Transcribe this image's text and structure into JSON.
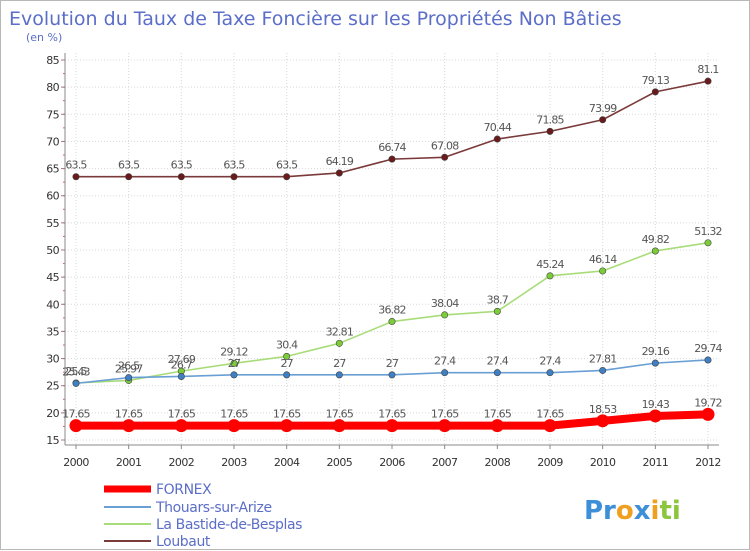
{
  "chart_data": {
    "type": "line",
    "title": "Evolution du Taux de Taxe Foncière sur les Propriétés Non Bâties",
    "subtitle": "(en %)",
    "xlabel": "",
    "ylabel": "",
    "ylim": [
      15,
      85
    ],
    "yticks": [
      15,
      20,
      25,
      30,
      35,
      40,
      45,
      50,
      55,
      60,
      65,
      70,
      75,
      80,
      85
    ],
    "ytick_labels": [
      "15",
      "20",
      "25",
      "30",
      "35",
      "40",
      "45",
      "50",
      "55",
      "60",
      "65",
      "70",
      "75",
      "80",
      "85"
    ],
    "grid": true,
    "legend_position": "bottom-left",
    "categories": [
      "2000",
      "2001",
      "2002",
      "2003",
      "2004",
      "2005",
      "2006",
      "2007",
      "2008",
      "2009",
      "2010",
      "2011",
      "2012"
    ],
    "series": [
      {
        "name": "FORNEX",
        "color": "#ff0000",
        "marker_color": "#ff0000",
        "emphasis": true,
        "values": [
          17.65,
          17.65,
          17.65,
          17.65,
          17.65,
          17.65,
          17.65,
          17.65,
          17.65,
          17.65,
          18.53,
          19.43,
          19.72
        ],
        "labels": [
          "17.65",
          "17.65",
          "17.65",
          "17.65",
          "17.65",
          "17.65",
          "17.65",
          "17.65",
          "17.65",
          "17.65",
          "18.53",
          "19.43",
          "19.72"
        ]
      },
      {
        "name": "Thouars-sur-Arize",
        "color": "#6a9fd4",
        "marker_color": "#3f7fc4",
        "emphasis": false,
        "values": [
          25.43,
          26.5,
          26.7,
          27,
          27,
          27,
          27,
          27.4,
          27.4,
          27.4,
          27.81,
          29.16,
          29.74
        ],
        "labels": [
          "25.43",
          "26.5",
          "26.7",
          "27",
          "27",
          "27",
          "27",
          "27.4",
          "27.4",
          "27.4",
          "27.81",
          "29.16",
          "29.74"
        ]
      },
      {
        "name": "La Bastide-de-Besplas",
        "color": "#a8dc78",
        "marker_color": "#7ccc3a",
        "emphasis": false,
        "values": [
          25.5,
          25.97,
          27.69,
          29.12,
          30.4,
          32.81,
          36.82,
          38.04,
          38.7,
          45.24,
          46.14,
          49.82,
          51.32
        ],
        "labels": [
          "25.5",
          "25.97",
          "27.69",
          "29.12",
          "30.4",
          "32.81",
          "36.82",
          "38.04",
          "38.7",
          "45.24",
          "46.14",
          "49.82",
          "51.32"
        ]
      },
      {
        "name": "Loubaut",
        "color": "#7a3a3a",
        "marker_color": "#6a1a1a",
        "emphasis": false,
        "values": [
          63.5,
          63.5,
          63.5,
          63.5,
          63.5,
          64.19,
          66.74,
          67.08,
          70.44,
          71.85,
          73.99,
          79.13,
          81.1
        ],
        "labels": [
          "63.5",
          "63.5",
          "63.5",
          "63.5",
          "63.5",
          "64.19",
          "66.74",
          "67.08",
          "70.44",
          "71.85",
          "73.99",
          "79.13",
          "81.1"
        ]
      }
    ]
  },
  "logo": {
    "parts": [
      {
        "text": "Pr",
        "color": "#3d8fd8"
      },
      {
        "text": "o",
        "color": "#f0a020"
      },
      {
        "text": "x",
        "color": "#3d8fd8"
      },
      {
        "text": "i",
        "color": "#f0a020"
      },
      {
        "text": "ti",
        "color": "#8cc63f"
      }
    ]
  }
}
